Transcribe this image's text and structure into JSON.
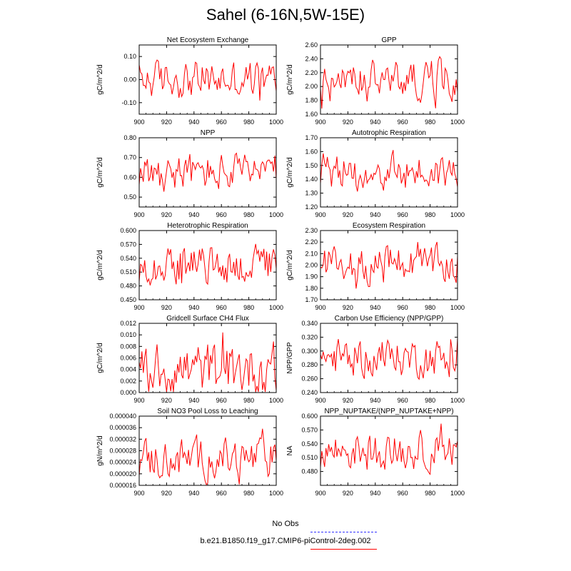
{
  "title": "Sahel (6-16N,5W-15E)",
  "colors": {
    "series": "#ff0000",
    "no_obs": "#3333ff",
    "axis": "#000000"
  },
  "legend": {
    "obs_label": "No Obs",
    "case_label": "b.e21.B1850.f19_g17.CMIP6-piControl-2deg.002"
  },
  "chart_data": [
    {
      "type": "line",
      "title": "Net Ecosystem Exchange",
      "ylabel": "gC/m^2/d",
      "xlim": [
        900,
        1000
      ],
      "xticks": [
        900,
        920,
        940,
        960,
        980,
        1000
      ],
      "ylim": [
        -0.15,
        0.15
      ],
      "yticks": [
        -0.1,
        0.0,
        0.1
      ],
      "ytick_labels": [
        "-0.10",
        "0.00",
        "0.10"
      ],
      "x": [],
      "values": []
    },
    {
      "type": "line",
      "title": "GPP",
      "ylabel": "gC/m^2/d",
      "xlim": [
        900,
        1000
      ],
      "xticks": [
        900,
        920,
        940,
        960,
        980,
        1000
      ],
      "ylim": [
        1.6,
        2.6
      ],
      "yticks": [
        1.6,
        1.8,
        2.0,
        2.2,
        2.4,
        2.6
      ],
      "ytick_labels": [
        "1.60",
        "1.80",
        "2.00",
        "2.20",
        "2.40",
        "2.60"
      ],
      "x": [],
      "values": []
    },
    {
      "type": "line",
      "title": "NPP",
      "ylabel": "gC/m^2/d",
      "xlim": [
        900,
        1000
      ],
      "xticks": [
        900,
        920,
        940,
        960,
        980,
        1000
      ],
      "ylim": [
        0.45,
        0.8
      ],
      "yticks": [
        0.5,
        0.6,
        0.7,
        0.8
      ],
      "ytick_labels": [
        "0.50",
        "0.60",
        "0.70",
        "0.80"
      ],
      "x": [],
      "values": []
    },
    {
      "type": "line",
      "title": "Autotrophic Respiration",
      "ylabel": "gC/m^2/d",
      "xlim": [
        900,
        1000
      ],
      "xticks": [
        900,
        920,
        940,
        960,
        980,
        1000
      ],
      "ylim": [
        1.2,
        1.7
      ],
      "yticks": [
        1.2,
        1.3,
        1.4,
        1.5,
        1.6,
        1.7
      ],
      "ytick_labels": [
        "1.20",
        "1.30",
        "1.40",
        "1.50",
        "1.60",
        "1.70"
      ],
      "x": [],
      "values": []
    },
    {
      "type": "line",
      "title": "Heterotrophic Respiration",
      "ylabel": "gC/m^2/d",
      "xlim": [
        900,
        1000
      ],
      "xticks": [
        900,
        920,
        940,
        960,
        980,
        1000
      ],
      "ylim": [
        0.45,
        0.6
      ],
      "yticks": [
        0.45,
        0.48,
        0.51,
        0.54,
        0.57,
        0.6
      ],
      "ytick_labels": [
        "0.450",
        "0.480",
        "0.510",
        "0.540",
        "0.570",
        "0.600"
      ],
      "x": [],
      "values": []
    },
    {
      "type": "line",
      "title": "Ecosystem Respiration",
      "ylabel": "gC/m^2/d",
      "xlim": [
        900,
        1000
      ],
      "xticks": [
        900,
        920,
        940,
        960,
        980,
        1000
      ],
      "ylim": [
        1.7,
        2.3
      ],
      "yticks": [
        1.7,
        1.8,
        1.9,
        2.0,
        2.1,
        2.2,
        2.3
      ],
      "ytick_labels": [
        "1.70",
        "1.80",
        "1.90",
        "2.00",
        "2.10",
        "2.20",
        "2.30"
      ],
      "x": [],
      "values": []
    },
    {
      "type": "line",
      "title": "Gridcell Surface CH4 Flux",
      "ylabel": "gC/m^2/d",
      "xlim": [
        900,
        1000
      ],
      "xticks": [
        900,
        920,
        940,
        960,
        980,
        1000
      ],
      "ylim": [
        0.0,
        0.012
      ],
      "yticks": [
        0.0,
        0.002,
        0.004,
        0.006,
        0.008,
        0.01,
        0.012
      ],
      "ytick_labels": [
        "0.000",
        "0.002",
        "0.004",
        "0.006",
        "0.008",
        "0.010",
        "0.012"
      ],
      "x": [],
      "values": []
    },
    {
      "type": "line",
      "title": "Carbon Use Efficiency (NPP/GPP)",
      "ylabel": "NPP/GPP",
      "xlim": [
        900,
        1000
      ],
      "xticks": [
        900,
        920,
        940,
        960,
        980,
        1000
      ],
      "ylim": [
        0.24,
        0.34
      ],
      "yticks": [
        0.24,
        0.26,
        0.28,
        0.3,
        0.32,
        0.34
      ],
      "ytick_labels": [
        "0.240",
        "0.260",
        "0.280",
        "0.300",
        "0.320",
        "0.340"
      ],
      "x": [],
      "values": []
    },
    {
      "type": "line",
      "title": "Soil NO3 Pool Loss to Leaching",
      "ylabel": "gN/m^2/d",
      "xlim": [
        900,
        1000
      ],
      "xticks": [
        900,
        920,
        940,
        960,
        980,
        1000
      ],
      "ylim": [
        1.6e-05,
        4e-05
      ],
      "yticks": [
        1.6e-05,
        2e-05,
        2.4e-05,
        2.8e-05,
        3.2e-05,
        3.6e-05,
        4e-05
      ],
      "ytick_labels": [
        "0.000016",
        "0.000020",
        "0.000024",
        "0.000028",
        "0.000032",
        "0.000036",
        "0.000040"
      ],
      "x": [],
      "values": []
    },
    {
      "type": "line",
      "title": "NPP_NUPTAKE/(NPP_NUPTAKE+NPP)",
      "ylabel": "NA",
      "xlim": [
        900,
        1000
      ],
      "xticks": [
        900,
        920,
        940,
        960,
        980,
        1000
      ],
      "ylim": [
        0.45,
        0.6
      ],
      "yticks": [
        0.48,
        0.51,
        0.54,
        0.57,
        0.6
      ],
      "ytick_labels": [
        "0.480",
        "0.510",
        "0.540",
        "0.570",
        "0.600"
      ],
      "x": [],
      "values": []
    }
  ]
}
